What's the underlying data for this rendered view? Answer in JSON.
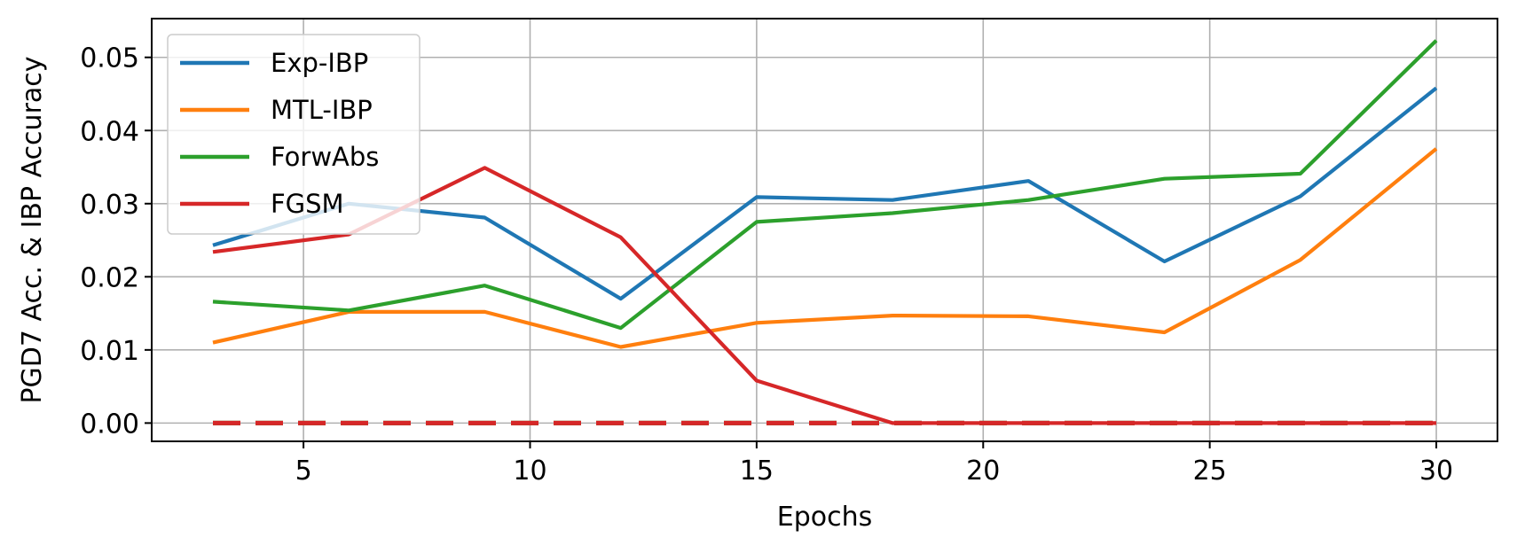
{
  "chart_data": {
    "type": "line",
    "xlabel": "Epochs",
    "ylabel": "PGD7 Acc. & IBP Accuracy",
    "xlim": [
      1.65,
      31.35
    ],
    "ylim": [
      -0.0025,
      0.0553
    ],
    "xticks": [
      5,
      10,
      15,
      20,
      25,
      30
    ],
    "yticks": [
      0.0,
      0.01,
      0.02,
      0.03,
      0.04,
      0.05
    ],
    "ytick_labels": [
      "0.00",
      "0.01",
      "0.02",
      "0.03",
      "0.04",
      "0.05"
    ],
    "grid": true,
    "legend_position": "upper-left",
    "x": [
      3,
      6,
      9,
      12,
      15,
      18,
      21,
      24,
      27,
      30
    ],
    "series": [
      {
        "name": "Exp-IBP",
        "color": "#1f77b4",
        "values": [
          0.0243,
          0.03,
          0.0281,
          0.017,
          0.0309,
          0.0305,
          0.0331,
          0.0221,
          0.031,
          0.0458
        ],
        "ibp_values": [
          0,
          0,
          0,
          0,
          0,
          0,
          0,
          0,
          0,
          0
        ]
      },
      {
        "name": "MTL-IBP",
        "color": "#ff7f0e",
        "values": [
          0.011,
          0.0152,
          0.0152,
          0.0104,
          0.0137,
          0.0147,
          0.0146,
          0.0124,
          0.0223,
          0.0375
        ],
        "ibp_values": [
          0,
          0,
          0,
          0,
          0,
          0,
          0,
          0,
          0,
          0
        ]
      },
      {
        "name": "ForwAbs",
        "color": "#2ca02c",
        "values": [
          0.0166,
          0.0154,
          0.0188,
          0.013,
          0.0275,
          0.0287,
          0.0305,
          0.0334,
          0.0341,
          0.0523
        ],
        "ibp_values": [
          0,
          0,
          0,
          0,
          0,
          0,
          0,
          0,
          0,
          0
        ]
      },
      {
        "name": "FGSM",
        "color": "#d62728",
        "values": [
          0.0234,
          0.0258,
          0.0349,
          0.0254,
          0.0058,
          0.0,
          0.0,
          0.0,
          0.0,
          0.0
        ],
        "ibp_values": [
          0,
          0,
          0,
          0,
          0,
          0,
          0,
          0,
          0,
          0
        ]
      }
    ]
  }
}
